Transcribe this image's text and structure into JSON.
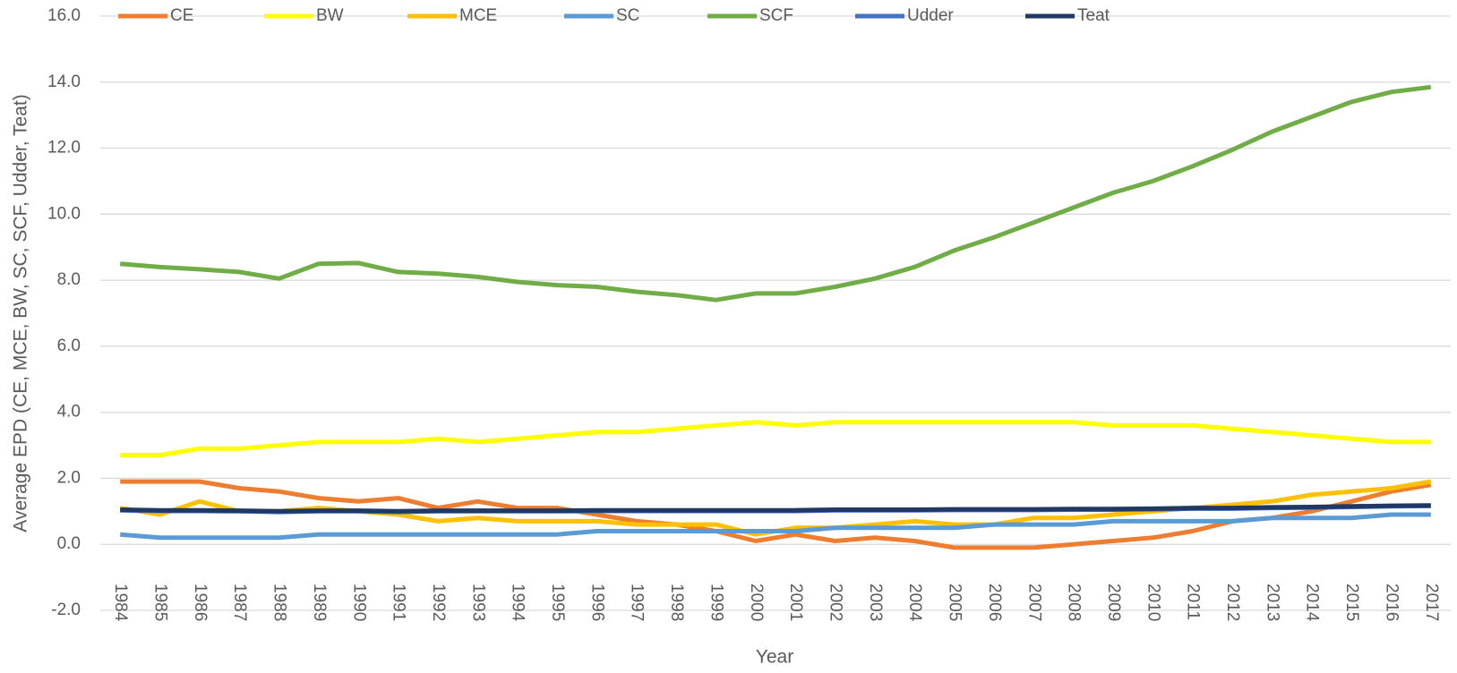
{
  "chart_data": {
    "type": "line",
    "x_label": "Year",
    "y_label": "Average EPD (CE, MCE, BW, SC, SCF, Udder, Teat)",
    "categories": [
      "1984",
      "1985",
      "1986",
      "1987",
      "1988",
      "1989",
      "1990",
      "1991",
      "1992",
      "1993",
      "1994",
      "1995",
      "1996",
      "1997",
      "1998",
      "1999",
      "2000",
      "2001",
      "2002",
      "2003",
      "2004",
      "2005",
      "2006",
      "2007",
      "2008",
      "2009",
      "2010",
      "2011",
      "2012",
      "2013",
      "2014",
      "2015",
      "2016",
      "2017"
    ],
    "ylim": [
      -2,
      16
    ],
    "yticks": [
      {
        "value": -2,
        "label": "-2.0"
      },
      {
        "value": 0,
        "label": "0.0"
      },
      {
        "value": 2,
        "label": "2.0"
      },
      {
        "value": 4,
        "label": "4.0"
      },
      {
        "value": 6,
        "label": "6.0"
      },
      {
        "value": 8,
        "label": "8.0"
      },
      {
        "value": 10,
        "label": "10.0"
      },
      {
        "value": 12,
        "label": "12.0"
      },
      {
        "value": 14,
        "label": "14.0"
      },
      {
        "value": 16,
        "label": "16.0"
      }
    ],
    "grid": true,
    "legend": "top",
    "series": [
      {
        "name": "CE",
        "color": "#ed7d31",
        "values": [
          1.9,
          1.9,
          1.9,
          1.7,
          1.6,
          1.4,
          1.3,
          1.4,
          1.1,
          1.3,
          1.1,
          1.1,
          0.9,
          0.7,
          0.6,
          0.4,
          0.1,
          0.3,
          0.1,
          0.2,
          0.1,
          -0.1,
          -0.1,
          -0.1,
          0.0,
          0.1,
          0.2,
          0.4,
          0.7,
          0.8,
          1.0,
          1.3,
          1.6,
          1.8
        ]
      },
      {
        "name": "BW",
        "color": "#ffff00",
        "values": [
          2.7,
          2.7,
          2.9,
          2.9,
          3.0,
          3.1,
          3.1,
          3.1,
          3.2,
          3.1,
          3.2,
          3.3,
          3.4,
          3.4,
          3.5,
          3.6,
          3.7,
          3.6,
          3.7,
          3.7,
          3.7,
          3.7,
          3.7,
          3.7,
          3.7,
          3.6,
          3.6,
          3.6,
          3.5,
          3.4,
          3.3,
          3.2,
          3.1,
          3.1
        ]
      },
      {
        "name": "MCE",
        "color": "#ffc000",
        "values": [
          1.1,
          0.9,
          1.3,
          1.0,
          1.0,
          1.1,
          1.0,
          0.9,
          0.7,
          0.8,
          0.7,
          0.7,
          0.7,
          0.6,
          0.6,
          0.6,
          0.3,
          0.5,
          0.5,
          0.6,
          0.7,
          0.6,
          0.6,
          0.8,
          0.8,
          0.9,
          1.0,
          1.1,
          1.2,
          1.3,
          1.5,
          1.6,
          1.7,
          1.9
        ]
      },
      {
        "name": "SC",
        "color": "#5b9bd5",
        "values": [
          0.3,
          0.2,
          0.2,
          0.2,
          0.2,
          0.3,
          0.3,
          0.3,
          0.3,
          0.3,
          0.3,
          0.3,
          0.4,
          0.4,
          0.4,
          0.4,
          0.4,
          0.4,
          0.5,
          0.5,
          0.5,
          0.5,
          0.6,
          0.6,
          0.6,
          0.7,
          0.7,
          0.7,
          0.7,
          0.8,
          0.8,
          0.8,
          0.9,
          0.9
        ]
      },
      {
        "name": "SCF",
        "color": "#70ad47",
        "values": [
          8.5,
          8.4,
          8.33,
          8.25,
          8.05,
          8.5,
          8.52,
          8.25,
          8.2,
          8.1,
          7.95,
          7.85,
          7.8,
          7.65,
          7.55,
          7.4,
          7.6,
          7.6,
          7.8,
          8.05,
          8.4,
          8.9,
          9.3,
          9.75,
          10.2,
          10.65,
          11.0,
          11.45,
          11.95,
          12.5,
          12.95,
          13.4,
          13.7,
          13.85
        ]
      },
      {
        "name": "Udder",
        "color": "#4472c4",
        "values": [
          1.03,
          1.01,
          1.01,
          1.0,
          0.98,
          1.0,
          1.0,
          0.98,
          1.0,
          1.0,
          1.0,
          1.0,
          1.01,
          1.01,
          1.01,
          1.01,
          1.01,
          1.01,
          1.03,
          1.03,
          1.03,
          1.04,
          1.04,
          1.04,
          1.05,
          1.05,
          1.06,
          1.08,
          1.08,
          1.1,
          1.11,
          1.13,
          1.15,
          1.16
        ]
      },
      {
        "name": "Teat",
        "color": "#203864",
        "values": [
          1.05,
          1.03,
          1.03,
          1.02,
          1.0,
          1.02,
          1.02,
          1.0,
          1.02,
          1.02,
          1.02,
          1.02,
          1.03,
          1.03,
          1.03,
          1.03,
          1.03,
          1.03,
          1.05,
          1.05,
          1.05,
          1.06,
          1.06,
          1.06,
          1.07,
          1.07,
          1.08,
          1.1,
          1.1,
          1.12,
          1.13,
          1.15,
          1.17,
          1.18
        ]
      }
    ]
  }
}
